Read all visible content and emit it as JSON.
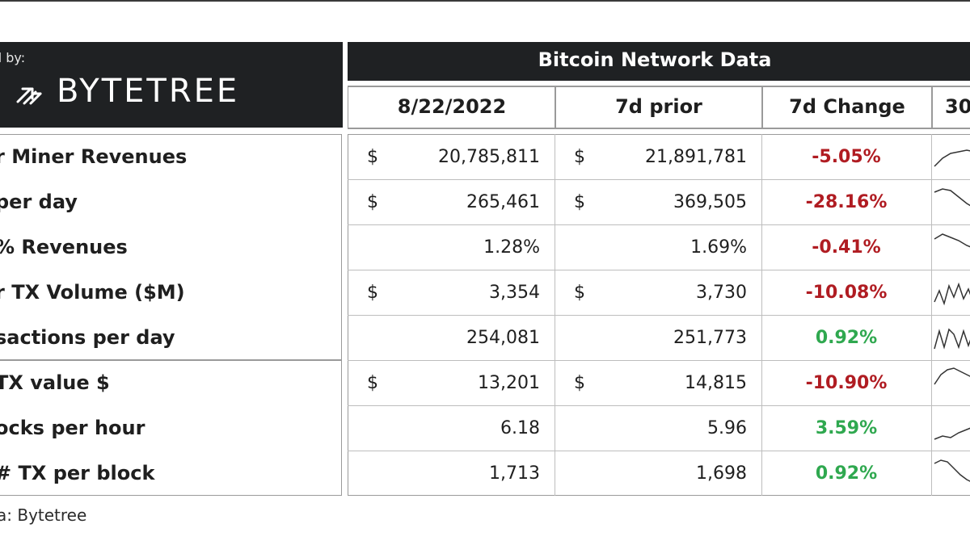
{
  "brand": {
    "powered_by": "d by:",
    "logo_text": "BYTETREE"
  },
  "header": {
    "title": "Bitcoin Network Data",
    "columns": [
      "8/22/2022",
      "7d prior",
      "7d Change",
      "30"
    ]
  },
  "rows": [
    {
      "label": "r Miner Revenues",
      "cur_dollar": "$",
      "current": "20,785,811",
      "prior_dollar": "$",
      "prior": "21,891,781",
      "change": "-5.05%",
      "change_dir": "neg"
    },
    {
      "label": "per day",
      "cur_dollar": "$",
      "current": "265,461",
      "prior_dollar": "$",
      "prior": "369,505",
      "change": "-28.16%",
      "change_dir": "neg"
    },
    {
      "label": "% Revenues",
      "cur_dollar": "",
      "current": "1.28%",
      "prior_dollar": "",
      "prior": "1.69%",
      "change": "-0.41%",
      "change_dir": "neg"
    },
    {
      "label": "r TX Volume ($M)",
      "cur_dollar": "$",
      "current": "3,354",
      "prior_dollar": "$",
      "prior": "3,730",
      "change": "-10.08%",
      "change_dir": "neg"
    },
    {
      "label": "sactions per day",
      "cur_dollar": "",
      "current": "254,081",
      "prior_dollar": "",
      "prior": "251,773",
      "change": "0.92%",
      "change_dir": "pos"
    },
    {
      "label": "TX value $",
      "cur_dollar": "$",
      "current": "13,201",
      "prior_dollar": "$",
      "prior": "14,815",
      "change": "-10.90%",
      "change_dir": "neg"
    },
    {
      "label": "ocks per hour",
      "cur_dollar": "",
      "current": "6.18",
      "prior_dollar": "",
      "prior": "5.96",
      "change": "3.59%",
      "change_dir": "pos"
    },
    {
      "label": "# TX per block",
      "cur_dollar": "",
      "current": "1,713",
      "prior_dollar": "",
      "prior": "1,698",
      "change": "0.92%",
      "change_dir": "pos"
    }
  ],
  "footer": "a: Bytetree",
  "colors": {
    "negative": "#b01c22",
    "positive": "#2fa84f",
    "header_bg": "#1f2123"
  },
  "chart_data": {
    "type": "table",
    "title": "Bitcoin Network Data",
    "columns": [
      "8/22/2022",
      "7d prior",
      "7d Change",
      "30"
    ],
    "rows": [
      [
        "r Miner Revenues",
        "$ 20,785,811",
        "$ 21,891,781",
        "-5.05%"
      ],
      [
        "per day",
        "$ 265,461",
        "$ 369,505",
        "-28.16%"
      ],
      [
        "% Revenues",
        "1.28%",
        "1.69%",
        "-0.41%"
      ],
      [
        "r TX Volume ($M)",
        "$ 3,354",
        "$ 3,730",
        "-10.08%"
      ],
      [
        "sactions per day",
        "254,081",
        "251,773",
        "0.92%"
      ],
      [
        "TX value $",
        "$ 13,201",
        "$ 14,815",
        "-10.90%"
      ],
      [
        "ocks per hour",
        "6.18",
        "5.96",
        "3.59%"
      ],
      [
        "# TX per block",
        "1,713",
        "1,698",
        "0.92%"
      ]
    ]
  }
}
